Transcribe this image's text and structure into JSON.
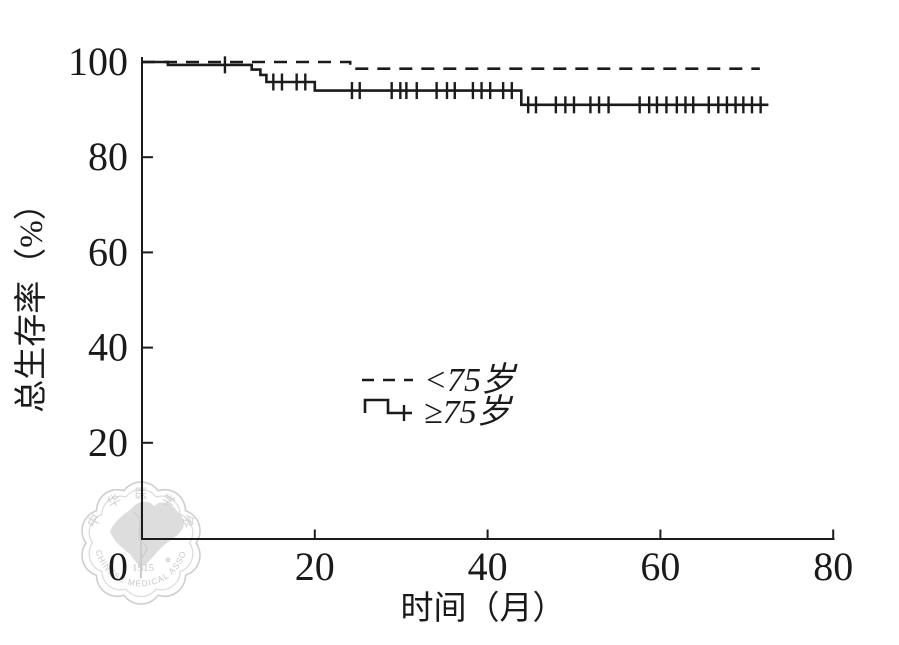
{
  "watermark": {
    "org_cn": "中华医学会",
    "year": "1915",
    "org_en": "CHINESE MEDICAL ASSOCIATION"
  },
  "chart_data": {
    "type": "line",
    "subtype": "kaplan-meier-step",
    "title": "",
    "xlabel": "时间（月）",
    "ylabel": "总生存率（%）",
    "xlim": [
      0,
      80
    ],
    "ylim": [
      0,
      102
    ],
    "x_ticks": [
      0,
      20,
      40,
      60,
      80
    ],
    "y_ticks": [
      20,
      40,
      60,
      80,
      100
    ],
    "grid": false,
    "legend_position": "center",
    "line_color": "#1b1b1b",
    "series": [
      {
        "name": "<75岁",
        "style": "dashed",
        "steps": [
          [
            0,
            100
          ],
          [
            24.1,
            100
          ],
          [
            24.1,
            98.6
          ],
          [
            71.5,
            98.6
          ]
        ],
        "censors": []
      },
      {
        "name": "≥75岁",
        "style": "solid-with-censor-ticks",
        "steps": [
          [
            0,
            100
          ],
          [
            3,
            100
          ],
          [
            3,
            99.4
          ],
          [
            12.7,
            99.4
          ],
          [
            12.7,
            98.4
          ],
          [
            13.7,
            98.4
          ],
          [
            13.7,
            97.3
          ],
          [
            14.4,
            97.3
          ],
          [
            14.4,
            95.8
          ],
          [
            20,
            95.8
          ],
          [
            20,
            94
          ],
          [
            43.9,
            94
          ],
          [
            43.9,
            91
          ],
          [
            72.5,
            91
          ]
        ],
        "censors": [
          [
            9.6,
            99.4
          ],
          [
            15.2,
            95.8
          ],
          [
            16.2,
            95.8
          ],
          [
            17.9,
            95.8
          ],
          [
            18.9,
            95.8
          ],
          [
            24.3,
            94
          ],
          [
            25.2,
            94
          ],
          [
            28.9,
            94
          ],
          [
            29.9,
            94
          ],
          [
            30.6,
            94
          ],
          [
            31.8,
            94
          ],
          [
            34.1,
            94
          ],
          [
            35.3,
            94
          ],
          [
            36.2,
            94
          ],
          [
            38.3,
            94
          ],
          [
            39.3,
            94
          ],
          [
            40.3,
            94
          ],
          [
            41.8,
            94
          ],
          [
            42.8,
            94
          ],
          [
            44.7,
            91
          ],
          [
            45.6,
            91
          ],
          [
            47.9,
            91
          ],
          [
            49,
            91
          ],
          [
            50,
            91
          ],
          [
            51.9,
            91
          ],
          [
            52.9,
            91
          ],
          [
            54,
            91
          ],
          [
            57.6,
            91
          ],
          [
            58.7,
            91
          ],
          [
            59.6,
            91
          ],
          [
            60.7,
            91
          ],
          [
            61.9,
            91
          ],
          [
            62.9,
            91
          ],
          [
            63.8,
            91
          ],
          [
            65.6,
            91
          ],
          [
            66.7,
            91
          ],
          [
            67.7,
            91
          ],
          [
            68.7,
            91
          ],
          [
            69.6,
            91
          ],
          [
            70.6,
            91
          ],
          [
            71.6,
            91
          ]
        ]
      }
    ]
  }
}
